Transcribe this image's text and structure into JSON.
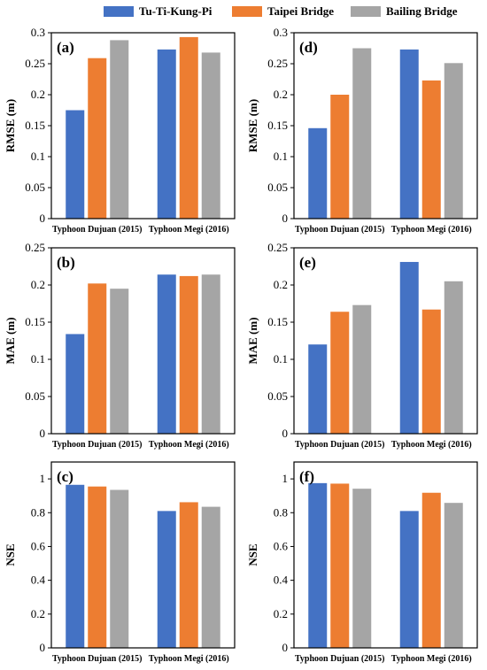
{
  "legend": [
    {
      "name": "Tu-Ti-Kung-Pi",
      "color": "#4472c4"
    },
    {
      "name": "Taipei Bridge",
      "color": "#ed7d31"
    },
    {
      "name": "Bailing Bridge",
      "color": "#a5a5a5"
    }
  ],
  "chart_data": [
    {
      "panel": "(a)",
      "type": "bar",
      "ylabel": "RMSE (m)",
      "categories": [
        "Typhoon Dujuan (2015)",
        "Typhoon Megi (2016)"
      ],
      "ylim": [
        0,
        0.3
      ],
      "yticks": [
        "0",
        "0.05",
        "0.1",
        "0.15",
        "0.2",
        "0.25",
        "0.3"
      ],
      "ytick_values": [
        0,
        0.05,
        0.1,
        0.15,
        0.2,
        0.25,
        0.3
      ],
      "series": [
        {
          "name": "Tu-Ti-Kung-Pi",
          "values": [
            0.175,
            0.273
          ]
        },
        {
          "name": "Taipei Bridge",
          "values": [
            0.259,
            0.293
          ]
        },
        {
          "name": "Bailing Bridge",
          "values": [
            0.288,
            0.268
          ]
        }
      ]
    },
    {
      "panel": "(d)",
      "type": "bar",
      "ylabel": "RMSE (m)",
      "categories": [
        "Typhoon Dujuan (2015)",
        "Typhoon Megi (2016)"
      ],
      "ylim": [
        0,
        0.3
      ],
      "yticks": [
        "0",
        "0.05",
        "0.1",
        "0.15",
        "0.2",
        "0.25",
        "0.3"
      ],
      "ytick_values": [
        0,
        0.05,
        0.1,
        0.15,
        0.2,
        0.25,
        0.3
      ],
      "series": [
        {
          "name": "Tu-Ti-Kung-Pi",
          "values": [
            0.146,
            0.273
          ]
        },
        {
          "name": "Taipei Bridge",
          "values": [
            0.2,
            0.223
          ]
        },
        {
          "name": "Bailing Bridge",
          "values": [
            0.275,
            0.251
          ]
        }
      ]
    },
    {
      "panel": "(b)",
      "type": "bar",
      "ylabel": "MAE (m)",
      "categories": [
        "Typhoon Dujuan (2015)",
        "Typhoon Megi (2016)"
      ],
      "ylim": [
        0,
        0.25
      ],
      "yticks": [
        "0",
        "0.05",
        "0.1",
        "0.15",
        "0.2",
        "0.25"
      ],
      "ytick_values": [
        0,
        0.05,
        0.1,
        0.15,
        0.2,
        0.25
      ],
      "series": [
        {
          "name": "Tu-Ti-Kung-Pi",
          "values": [
            0.134,
            0.214
          ]
        },
        {
          "name": "Taipei Bridge",
          "values": [
            0.202,
            0.212
          ]
        },
        {
          "name": "Bailing Bridge",
          "values": [
            0.195,
            0.214
          ]
        }
      ]
    },
    {
      "panel": "(e)",
      "type": "bar",
      "ylabel": "MAE (m)",
      "categories": [
        "Typhoon Dujuan (2015)",
        "Typhoon Megi (2016)"
      ],
      "ylim": [
        0,
        0.25
      ],
      "yticks": [
        "0",
        "0.05",
        "0.1",
        "0.15",
        "0.2",
        "0.25"
      ],
      "ytick_values": [
        0,
        0.05,
        0.1,
        0.15,
        0.2,
        0.25
      ],
      "series": [
        {
          "name": "Tu-Ti-Kung-Pi",
          "values": [
            0.12,
            0.231
          ]
        },
        {
          "name": "Taipei Bridge",
          "values": [
            0.164,
            0.167
          ]
        },
        {
          "name": "Bailing Bridge",
          "values": [
            0.173,
            0.205
          ]
        }
      ]
    },
    {
      "panel": "(c)",
      "type": "bar",
      "ylabel": "NSE",
      "categories": [
        "Typhoon Dujuan (2015)",
        "Typhoon Megi (2016)"
      ],
      "ylim": [
        0,
        1.1
      ],
      "yticks": [
        "0",
        "0.2",
        "0.4",
        "0.6",
        "0.8",
        "1"
      ],
      "ytick_values": [
        0,
        0.2,
        0.4,
        0.6,
        0.8,
        1
      ],
      "series": [
        {
          "name": "Tu-Ti-Kung-Pi",
          "values": [
            0.965,
            0.81
          ]
        },
        {
          "name": "Taipei Bridge",
          "values": [
            0.955,
            0.862
          ]
        },
        {
          "name": "Bailing Bridge",
          "values": [
            0.935,
            0.835
          ]
        }
      ]
    },
    {
      "panel": "(f)",
      "type": "bar",
      "ylabel": "NSE",
      "categories": [
        "Typhoon Dujuan (2015)",
        "Typhoon Megi (2016)"
      ],
      "ylim": [
        0,
        1.1
      ],
      "yticks": [
        "0",
        "0.2",
        "0.4",
        "0.6",
        "0.8",
        "1"
      ],
      "ytick_values": [
        0,
        0.2,
        0.4,
        0.6,
        0.8,
        1
      ],
      "series": [
        {
          "name": "Tu-Ti-Kung-Pi",
          "values": [
            0.975,
            0.81
          ]
        },
        {
          "name": "Taipei Bridge",
          "values": [
            0.972,
            0.918
          ]
        },
        {
          "name": "Bailing Bridge",
          "values": [
            0.942,
            0.858
          ]
        }
      ]
    }
  ]
}
